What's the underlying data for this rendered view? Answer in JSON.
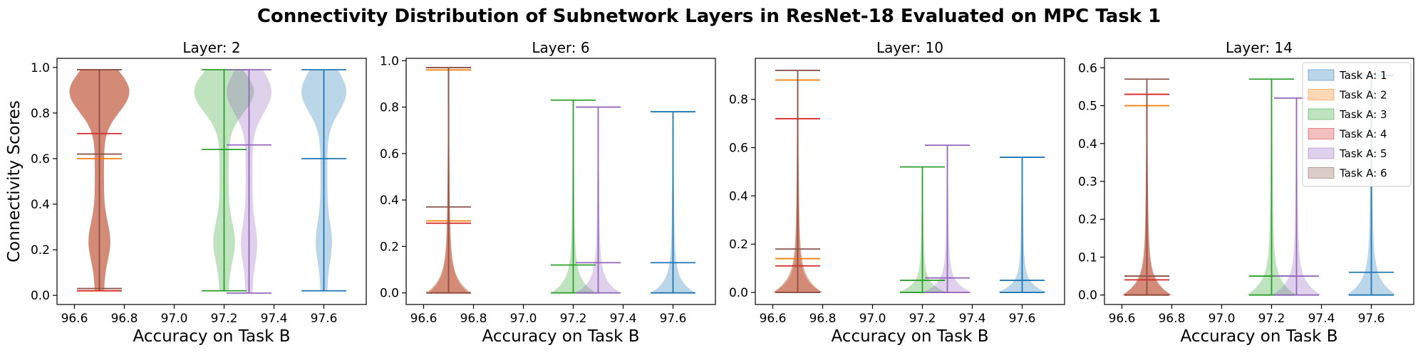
{
  "figure": {
    "title": "Connectivity Distribution of Subnetwork Layers in ResNet-18 Evaluated on MPC Task 1"
  },
  "legend": {
    "placement": "top-right of last panel",
    "entries": [
      {
        "label": "Task A: 1",
        "color": "#1f77b4"
      },
      {
        "label": "Task A: 2",
        "color": "#ff7f0e"
      },
      {
        "label": "Task A: 3",
        "color": "#2ca02c"
      },
      {
        "label": "Task A: 4",
        "color": "#d62728"
      },
      {
        "label": "Task A: 5",
        "color": "#9467bd"
      },
      {
        "label": "Task A: 6",
        "color": "#8c564b"
      }
    ]
  },
  "chart_data": [
    {
      "type": "violin",
      "title": "Layer: 2",
      "xlabel": "Accuracy on Task B",
      "ylabel": "Connectivity Scores",
      "xlim": [
        96.53,
        97.77
      ],
      "ylim": [
        -0.04,
        1.04
      ],
      "xticks": [
        96.6,
        96.8,
        97.0,
        97.2,
        97.4,
        97.6
      ],
      "yticks": [
        0.0,
        0.2,
        0.4,
        0.6,
        0.8,
        1.0
      ],
      "ytick_labels": [
        "0.0",
        "0.2",
        "0.4",
        "0.6",
        "0.8",
        "1.0"
      ],
      "grid": false,
      "series": [
        {
          "task": 1,
          "x": 97.6,
          "min": 0.02,
          "max": 0.99,
          "mean": 0.6,
          "halfwidth": 0.09,
          "shape": "top-heavy"
        },
        {
          "task": 2,
          "x": 96.7,
          "min": 0.02,
          "max": 0.99,
          "mean": 0.6,
          "halfwidth": 0.12,
          "shape": "top-heavy"
        },
        {
          "task": 3,
          "x": 97.2,
          "min": 0.02,
          "max": 0.99,
          "mean": 0.64,
          "halfwidth": 0.12,
          "shape": "top-heavy"
        },
        {
          "task": 4,
          "x": 96.7,
          "min": 0.02,
          "max": 0.99,
          "mean": 0.71,
          "halfwidth": 0.12,
          "shape": "top-heavy"
        },
        {
          "task": 5,
          "x": 97.3,
          "min": 0.01,
          "max": 0.99,
          "mean": 0.66,
          "halfwidth": 0.09,
          "shape": "top-heavy"
        },
        {
          "task": 6,
          "x": 96.7,
          "min": 0.03,
          "max": 0.99,
          "mean": 0.62,
          "halfwidth": 0.12,
          "shape": "top-heavy"
        }
      ]
    },
    {
      "type": "violin",
      "title": "Layer: 6",
      "xlabel": "Accuracy on Task B",
      "ylabel": "",
      "xlim": [
        96.53,
        97.77
      ],
      "ylim": [
        -0.05,
        1.01
      ],
      "xticks": [
        96.6,
        96.8,
        97.0,
        97.2,
        97.4,
        97.6
      ],
      "yticks": [
        0.0,
        0.2,
        0.4,
        0.6,
        0.8,
        1.0
      ],
      "ytick_labels": [
        "0.0",
        "0.2",
        "0.4",
        "0.6",
        "0.8",
        "1.0"
      ],
      "grid": false,
      "series": [
        {
          "task": 1,
          "x": 97.6,
          "min": 0.0,
          "max": 0.78,
          "mean": 0.13,
          "halfwidth": 0.09,
          "shape": "bottom-heavy"
        },
        {
          "task": 2,
          "x": 96.7,
          "min": 0.0,
          "max": 0.96,
          "mean": 0.31,
          "halfwidth": 0.09,
          "shape": "bottom-heavy"
        },
        {
          "task": 3,
          "x": 97.2,
          "min": 0.0,
          "max": 0.83,
          "mean": 0.12,
          "halfwidth": 0.09,
          "shape": "bottom-heavy"
        },
        {
          "task": 4,
          "x": 96.7,
          "min": 0.0,
          "max": 0.97,
          "mean": 0.3,
          "halfwidth": 0.08,
          "shape": "bottom-heavy"
        },
        {
          "task": 5,
          "x": 97.3,
          "min": 0.0,
          "max": 0.8,
          "mean": 0.13,
          "halfwidth": 0.09,
          "shape": "bottom-heavy"
        },
        {
          "task": 6,
          "x": 96.7,
          "min": 0.0,
          "max": 0.97,
          "mean": 0.37,
          "halfwidth": 0.09,
          "shape": "bottom-heavy"
        }
      ]
    },
    {
      "type": "violin",
      "title": "Layer: 10",
      "xlabel": "Accuracy on Task B",
      "ylabel": "",
      "xlim": [
        96.53,
        97.77
      ],
      "ylim": [
        -0.05,
        0.97
      ],
      "xticks": [
        96.6,
        96.8,
        97.0,
        97.2,
        97.4,
        97.6
      ],
      "yticks": [
        0.0,
        0.2,
        0.4,
        0.6,
        0.8
      ],
      "ytick_labels": [
        "0.0",
        "0.2",
        "0.4",
        "0.6",
        "0.8"
      ],
      "grid": false,
      "series": [
        {
          "task": 1,
          "x": 97.6,
          "min": 0.0,
          "max": 0.56,
          "mean": 0.05,
          "halfwidth": 0.1,
          "shape": "bottom-heavy"
        },
        {
          "task": 2,
          "x": 96.7,
          "min": 0.0,
          "max": 0.88,
          "mean": 0.14,
          "halfwidth": 0.1,
          "shape": "bottom-heavy"
        },
        {
          "task": 3,
          "x": 97.2,
          "min": 0.0,
          "max": 0.52,
          "mean": 0.05,
          "halfwidth": 0.1,
          "shape": "bottom-heavy"
        },
        {
          "task": 4,
          "x": 96.7,
          "min": 0.0,
          "max": 0.72,
          "mean": 0.11,
          "halfwidth": 0.1,
          "shape": "bottom-heavy"
        },
        {
          "task": 5,
          "x": 97.3,
          "min": 0.0,
          "max": 0.61,
          "mean": 0.06,
          "halfwidth": 0.1,
          "shape": "bottom-heavy"
        },
        {
          "task": 6,
          "x": 96.7,
          "min": 0.0,
          "max": 0.92,
          "mean": 0.18,
          "halfwidth": 0.1,
          "shape": "bottom-heavy"
        }
      ]
    },
    {
      "type": "violin",
      "title": "Layer: 14",
      "xlabel": "Accuracy on Task B",
      "ylabel": "",
      "xlim": [
        96.53,
        97.77
      ],
      "ylim": [
        -0.025,
        0.625
      ],
      "xticks": [
        96.6,
        96.8,
        97.0,
        97.2,
        97.4,
        97.6
      ],
      "yticks": [
        0.0,
        0.1,
        0.2,
        0.3,
        0.4,
        0.5,
        0.6
      ],
      "ytick_labels": [
        "0.0",
        "0.1",
        "0.2",
        "0.3",
        "0.4",
        "0.5",
        "0.6"
      ],
      "grid": false,
      "series": [
        {
          "task": 1,
          "x": 97.6,
          "min": 0.0,
          "max": 0.58,
          "mean": 0.06,
          "halfwidth": 0.1,
          "shape": "bottom-heavy"
        },
        {
          "task": 2,
          "x": 96.7,
          "min": 0.0,
          "max": 0.5,
          "mean": 0.05,
          "halfwidth": 0.1,
          "shape": "bottom-heavy"
        },
        {
          "task": 3,
          "x": 97.2,
          "min": 0.0,
          "max": 0.57,
          "mean": 0.05,
          "halfwidth": 0.1,
          "shape": "bottom-heavy"
        },
        {
          "task": 4,
          "x": 96.7,
          "min": 0.0,
          "max": 0.53,
          "mean": 0.04,
          "halfwidth": 0.1,
          "shape": "bottom-heavy"
        },
        {
          "task": 5,
          "x": 97.3,
          "min": 0.0,
          "max": 0.52,
          "mean": 0.05,
          "halfwidth": 0.1,
          "shape": "bottom-heavy"
        },
        {
          "task": 6,
          "x": 96.7,
          "min": 0.0,
          "max": 0.57,
          "mean": 0.05,
          "halfwidth": 0.1,
          "shape": "bottom-heavy"
        }
      ]
    }
  ]
}
